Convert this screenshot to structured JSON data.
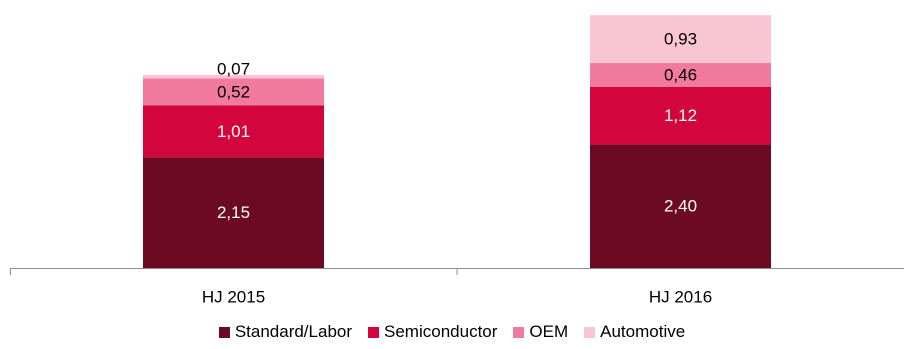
{
  "chart_data": {
    "type": "bar",
    "stacked": true,
    "categories": [
      "HJ 2015",
      "HJ 2016"
    ],
    "series": [
      {
        "name": "Standard/Labor",
        "color": "#6b0a22",
        "values": [
          2.15,
          2.4
        ],
        "labels": [
          "2,15",
          "2,40"
        ],
        "label_color": "#ffffff"
      },
      {
        "name": "Semiconductor",
        "color": "#d2063d",
        "values": [
          1.01,
          1.12
        ],
        "labels": [
          "1,01",
          "1,12"
        ],
        "label_color": "#ffffff"
      },
      {
        "name": "OEM",
        "color": "#f27a9e",
        "values": [
          0.52,
          0.46
        ],
        "labels": [
          "0,52",
          "0,46"
        ],
        "label_color": "#000000"
      },
      {
        "name": "Automotive",
        "color": "#f9c4d4",
        "values": [
          0.07,
          0.93
        ],
        "labels": [
          "0,07",
          "0,93"
        ],
        "label_color": "#000000"
      }
    ],
    "title": "",
    "xlabel": "",
    "ylabel": "",
    "ylim": [
      0,
      5
    ],
    "grid": false,
    "legend_position": "bottom"
  }
}
